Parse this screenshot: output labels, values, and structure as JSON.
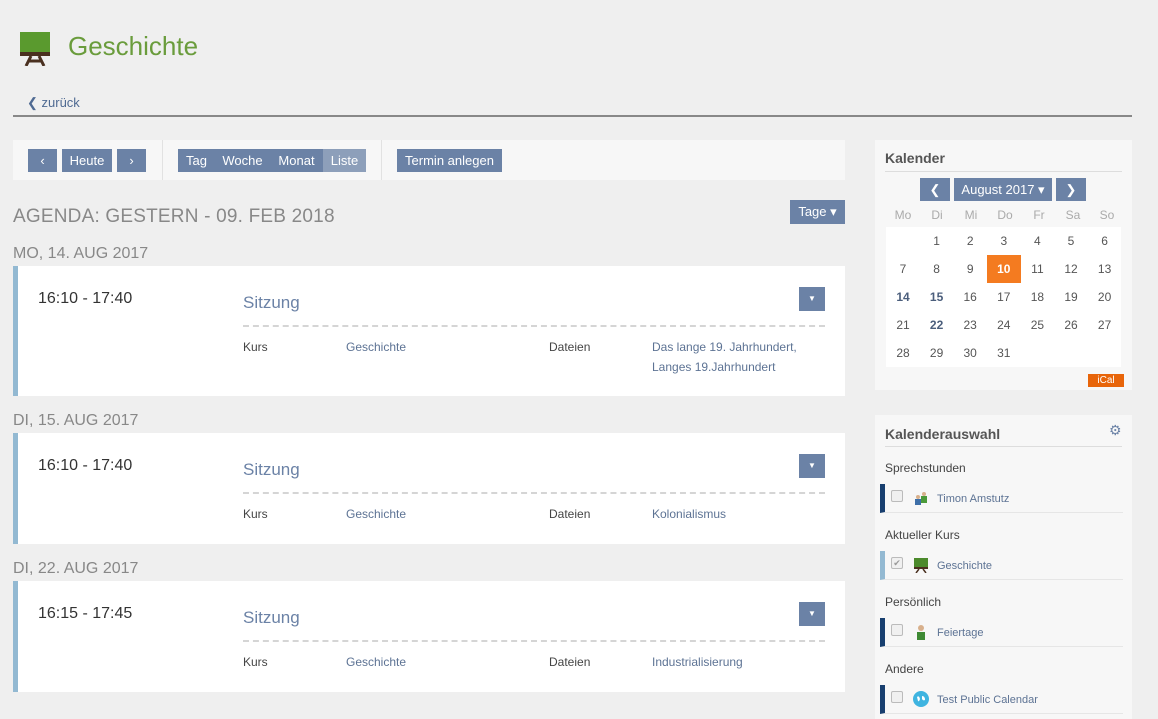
{
  "header": {
    "title": "Geschichte",
    "back": "zurück"
  },
  "toolbar": {
    "prev": "‹",
    "today": "Heute",
    "next": "›",
    "views": [
      "Tag",
      "Woche",
      "Monat",
      "Liste"
    ],
    "active_view": "Liste",
    "create": "Termin anlegen"
  },
  "agenda": {
    "title": "AGENDA: GESTERN - 09. FEB 2018",
    "range_button": "Tage ▾"
  },
  "days": [
    {
      "date": "MO, 14. AUG 2017",
      "time": "16:10 - 17:40",
      "name": "Sitzung",
      "kurs_label": "Kurs",
      "kurs": "Geschichte",
      "files_label": "Dateien",
      "files": [
        "Das lange 19. Jahrhundert,",
        "Langes 19.Jahrhundert"
      ]
    },
    {
      "date": "DI, 15. AUG 2017",
      "time": "16:10 - 17:40",
      "name": "Sitzung",
      "kurs_label": "Kurs",
      "kurs": "Geschichte",
      "files_label": "Dateien",
      "files": [
        "Kolonialismus"
      ]
    },
    {
      "date": "DI, 22. AUG 2017",
      "time": "16:15 - 17:45",
      "name": "Sitzung",
      "kurs_label": "Kurs",
      "kurs": "Geschichte",
      "files_label": "Dateien",
      "files": [
        "Industrialisierung"
      ]
    }
  ],
  "calendar": {
    "title": "Kalender",
    "month": "August 2017 ▾",
    "weekdays": [
      "Mo",
      "Di",
      "Mi",
      "Do",
      "Fr",
      "Sa",
      "So"
    ],
    "weeks": [
      [
        "",
        "1",
        "2",
        "3",
        "4",
        "5",
        "6"
      ],
      [
        "7",
        "8",
        "9",
        "10",
        "11",
        "12",
        "13"
      ],
      [
        "14",
        "15",
        "16",
        "17",
        "18",
        "19",
        "20"
      ],
      [
        "21",
        "22",
        "23",
        "24",
        "25",
        "26",
        "27"
      ],
      [
        "28",
        "29",
        "30",
        "31",
        "",
        "",
        ""
      ]
    ],
    "today": "10",
    "event_days": [
      "14",
      "15",
      "22"
    ],
    "ical": "iCal",
    "accent": "#f47b20"
  },
  "selection": {
    "title": "Kalenderauswahl",
    "groups": [
      {
        "label": "Sprechstunden",
        "items": [
          {
            "name": "Timon Amstutz",
            "checked": false,
            "icon": "users-icon",
            "color": "#183f6f"
          }
        ]
      },
      {
        "label": "Aktueller Kurs",
        "items": [
          {
            "name": "Geschichte",
            "checked": true,
            "icon": "blackboard-icon",
            "color": "#93b9d2"
          }
        ]
      },
      {
        "label": "Persönlich",
        "items": [
          {
            "name": "Feiertage",
            "checked": false,
            "icon": "user-icon",
            "color": "#183f6f"
          }
        ]
      },
      {
        "label": "Andere",
        "items": [
          {
            "name": "Test Public Calendar",
            "checked": false,
            "icon": "globe-icon",
            "color": "#183f6f"
          }
        ]
      }
    ]
  }
}
